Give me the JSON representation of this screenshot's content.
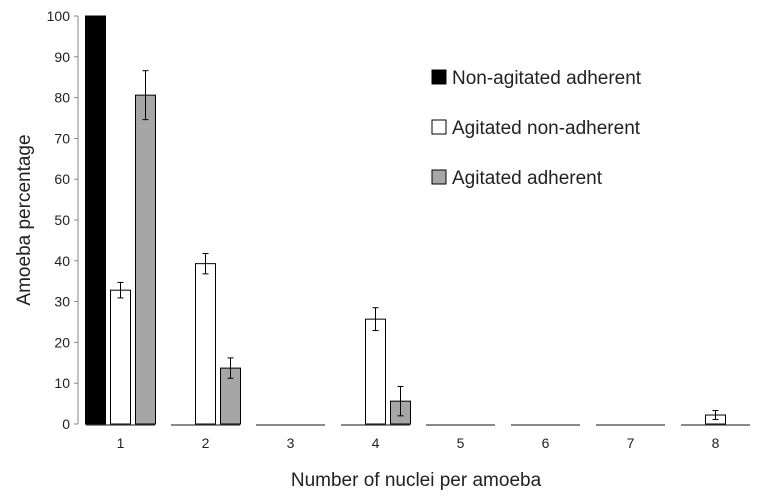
{
  "chart_data": {
    "type": "bar",
    "xlabel": "Number of nuclei per amoeba",
    "ylabel": "Amoeba percentage",
    "ylim": [
      0,
      100
    ],
    "yticks": [
      0,
      10,
      20,
      30,
      40,
      50,
      60,
      70,
      80,
      90,
      100
    ],
    "categories": [
      "1",
      "2",
      "3",
      "4",
      "5",
      "6",
      "7",
      "8"
    ],
    "grid": false,
    "legend_position": "top-right",
    "series": [
      {
        "name": "Non-agitated adherent",
        "color": "#000000",
        "values": [
          100,
          0,
          0,
          0,
          0,
          0,
          0,
          0
        ],
        "errors": [
          0,
          0,
          0,
          0,
          0,
          0,
          0,
          0
        ]
      },
      {
        "name": "Agitated non-adherent",
        "color": "#ffffff",
        "values": [
          32.8,
          39.3,
          0,
          25.7,
          0,
          0,
          0,
          2.2
        ],
        "errors": [
          1.9,
          2.5,
          0,
          2.8,
          0,
          0,
          0,
          1.1
        ]
      },
      {
        "name": "Agitated adherent",
        "color": "#a6a6a6",
        "values": [
          80.6,
          13.7,
          0,
          5.6,
          0,
          0,
          0,
          0
        ],
        "errors": [
          6.0,
          2.5,
          0,
          3.6,
          0,
          0,
          0,
          0
        ]
      }
    ]
  }
}
